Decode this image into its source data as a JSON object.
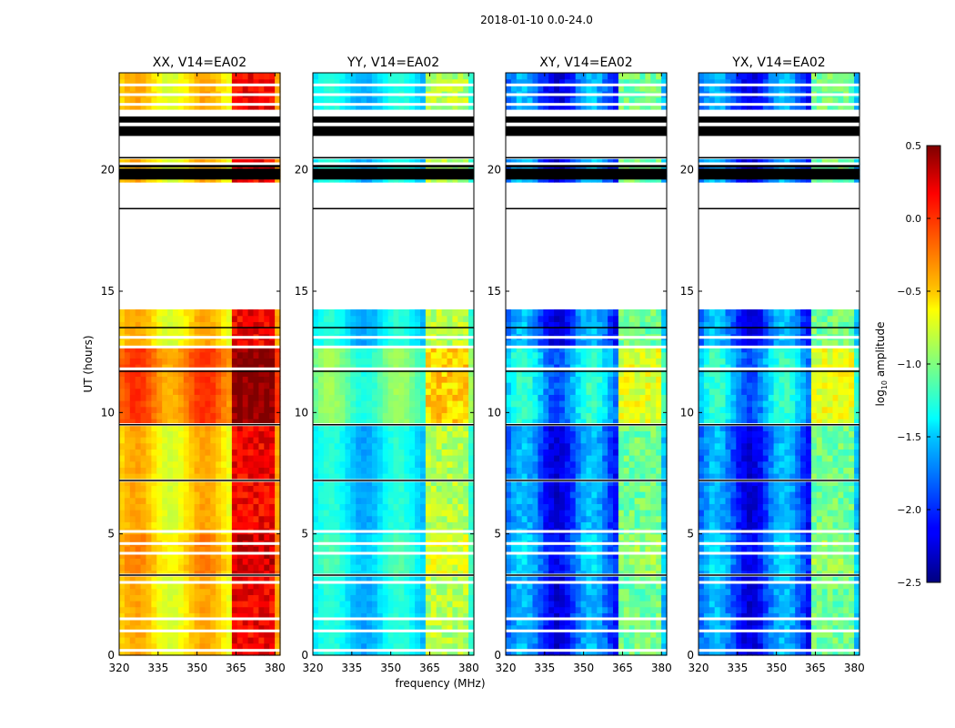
{
  "chart_data": {
    "type": "heatmap",
    "suptitle": "2018-01-10 0.0-24.0",
    "xlabel": "frequency (MHz)",
    "ylabel": "UT (hours)",
    "xlim": [
      320,
      382
    ],
    "ylim": [
      0,
      24
    ],
    "x_ticks": [
      "320",
      "335",
      "350",
      "365",
      "380"
    ],
    "y_ticks": [
      "0",
      "5",
      "10",
      "15",
      "20"
    ],
    "panels": [
      {
        "title": "XX, V14=EA02",
        "base_level": -0.55,
        "rfi_level": 0.15
      },
      {
        "title": "YY, V14=EA02",
        "base_level": -1.45,
        "rfi_level": -0.85
      },
      {
        "title": "XY, V14=EA02",
        "base_level": -1.9,
        "rfi_level": -1.05
      },
      {
        "title": "YX, V14=EA02",
        "base_level": -1.9,
        "rfi_level": -1.05
      }
    ],
    "colorbar": {
      "label": "log",
      "label_sub": "10",
      "label_tail": " amplitude",
      "range": [
        -2.5,
        0.5
      ],
      "ticks": [
        "0.5",
        "0.0",
        "−0.5",
        "−1.0",
        "−1.5",
        "−2.0",
        "−2.5"
      ],
      "colormap": "jet"
    },
    "no_data_hours": [
      [
        14.3,
        18.4
      ],
      [
        18.4,
        19.6
      ],
      [
        20.55,
        21.3
      ],
      [
        21.3,
        22.6
      ]
    ],
    "flagged_rows_hours": [
      0.2,
      1.0,
      1.5,
      3.0,
      3.3,
      4.2,
      4.6,
      5.1,
      7.2,
      9.5,
      11.8,
      12.7,
      13.1,
      20.25,
      20.5,
      22.7,
      23.1,
      23.5
    ]
  }
}
